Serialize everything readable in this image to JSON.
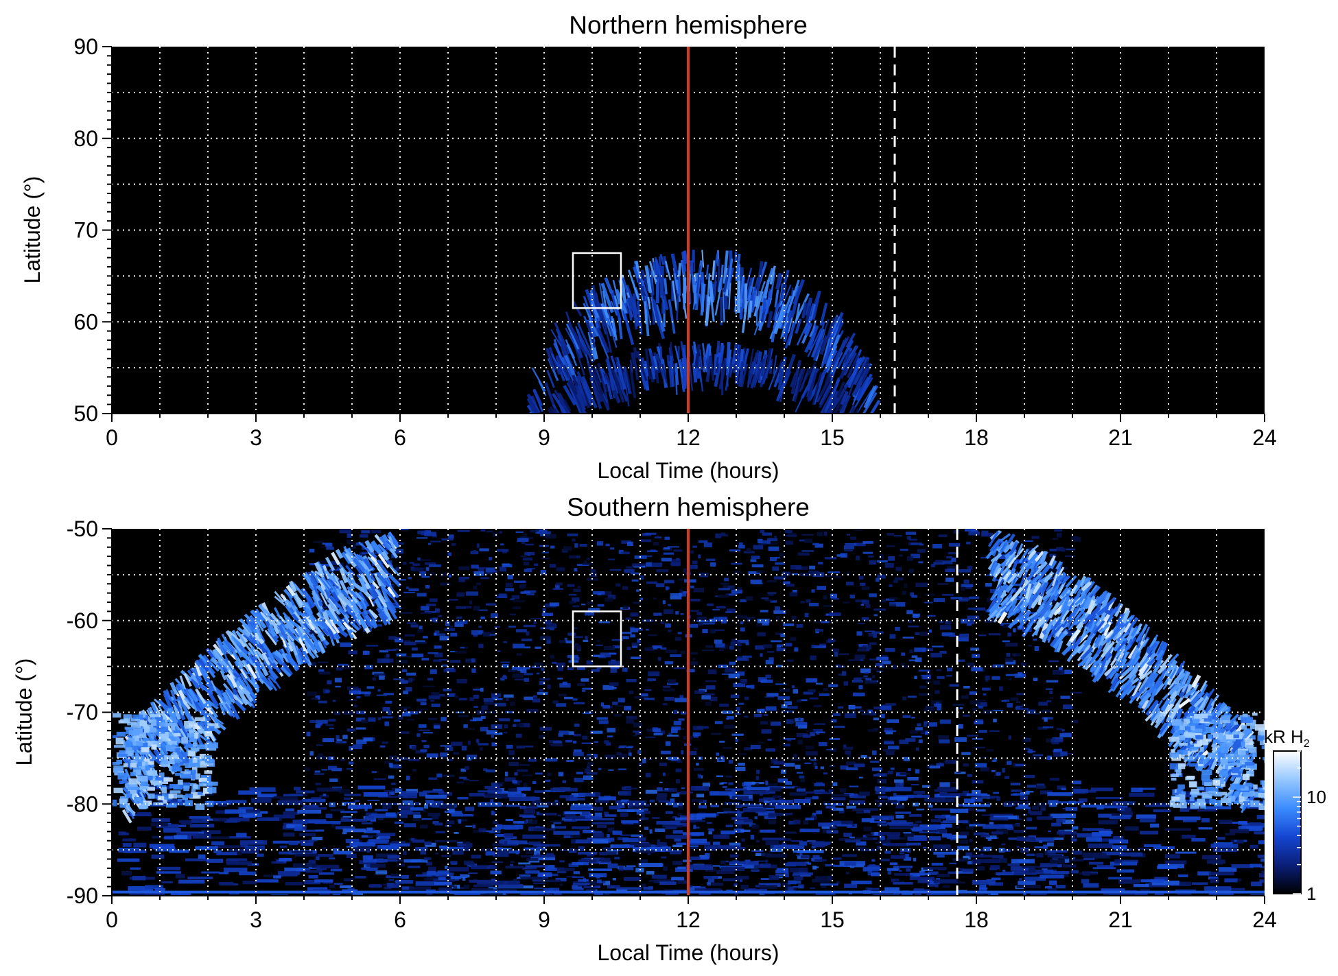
{
  "chart_data": [
    {
      "type": "heatmap",
      "title": "Northern hemisphere",
      "xlabel": "Local Time (hours)",
      "ylabel": "Latitude (°)",
      "xlim": [
        0,
        24
      ],
      "ylim": [
        50,
        90
      ],
      "xticks": [
        "0",
        "3",
        "6",
        "9",
        "12",
        "15",
        "18",
        "21",
        "24"
      ],
      "yticks": [
        "50",
        "60",
        "70",
        "80",
        "90"
      ],
      "grid": true,
      "background_color": "#000000",
      "noon_line": {
        "x": 12,
        "color": "#d23c1e"
      },
      "dashed_line": {
        "x": 16.3,
        "color": "#ffffff"
      },
      "box": {
        "x0": 9.6,
        "x1": 10.6,
        "y0": 61.5,
        "y1": 67.5,
        "color": "#ffffff"
      },
      "emission_arcs": [
        {
          "center_lt": 12.3,
          "half_width_hours": 3.7,
          "peak_lat": 68.0,
          "floor_lat": 50,
          "thickness_deg": 5.5,
          "peak_intensity": 0.75
        },
        {
          "center_lt": 12.3,
          "half_width_hours": 3.3,
          "peak_lat": 58.0,
          "floor_lat": 50,
          "thickness_deg": 2.5,
          "peak_intensity": 0.5
        }
      ]
    },
    {
      "type": "heatmap",
      "title": "Southern hemisphere",
      "xlabel": "Local Time (hours)",
      "ylabel": "Latitude (°)",
      "xlim": [
        0,
        24
      ],
      "ylim": [
        -90,
        -50
      ],
      "xticks": [
        "0",
        "3",
        "6",
        "9",
        "12",
        "15",
        "18",
        "21",
        "24"
      ],
      "yticks": [
        "-90",
        "-80",
        "-70",
        "-60",
        "-50"
      ],
      "grid": true,
      "background_color": "#000000",
      "noon_line": {
        "x": 12,
        "color": "#d23c1e"
      },
      "dashed_line": {
        "x": 17.6,
        "color": "#ffffff"
      },
      "box": {
        "x0": 9.6,
        "x1": 10.6,
        "y0": -65,
        "y1": -59,
        "color": "#ffffff"
      },
      "oval": {
        "left_arc": {
          "lt_top": 5.8,
          "lt_bottom": 0.2,
          "lat_top": -50,
          "lat_bottom": -72
        },
        "right_arc": {
          "lt_top": 18.4,
          "lt_bottom": 23.8,
          "lat_top": -50,
          "lat_bottom": -72
        },
        "peak_intensity": 0.95
      }
    }
  ],
  "colorbar": {
    "label_prefix": "kR H",
    "label_subscript": "2",
    "ticks": [
      "1",
      "10"
    ],
    "scale": "log",
    "range": [
      1,
      30
    ],
    "colors": [
      "#000000",
      "#0a1e78",
      "#1446d2",
      "#3c8cff",
      "#96c8ff",
      "#ffffff"
    ]
  }
}
